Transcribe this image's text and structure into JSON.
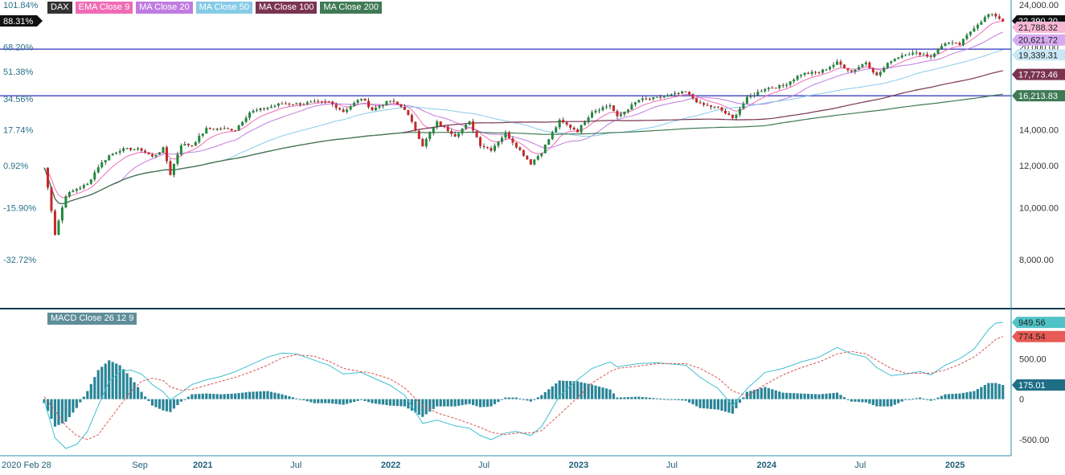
{
  "legend": {
    "symbol": {
      "label": "DAX",
      "color": "#333333"
    },
    "items": [
      {
        "label": "EMA Close 9",
        "color": "#f06bb4"
      },
      {
        "label": "MA Close 20",
        "color": "#c07be0"
      },
      {
        "label": "MA Close 50",
        "color": "#86cbe6"
      },
      {
        "label": "MA Close 100",
        "color": "#7a3450"
      },
      {
        "label": "MA Close 200",
        "color": "#3f7a55"
      }
    ]
  },
  "macd_label": "MACD Close 26 12 9",
  "chart_data": [
    {
      "type": "candlestick",
      "title": "DAX",
      "x_ticks": [
        "2020 Feb 28",
        "Sep",
        "2021",
        "Jul",
        "2022",
        "Jul",
        "2023",
        "Jul",
        "2024",
        "Jul",
        "2025"
      ],
      "x_tick_dates": [
        "2020-02-28",
        "2020-09-01",
        "2021-01-01",
        "2021-07-01",
        "2022-01-01",
        "2022-07-01",
        "2023-01-01",
        "2023-07-01",
        "2024-01-01",
        "2024-07-01",
        "2025-01-01"
      ],
      "x_range": [
        "2020-02-28",
        "2025-04-20"
      ],
      "y_right_ticks": [
        "24,000.00",
        "20,000.00",
        "14,000.00",
        "12,000.00",
        "10,000.00",
        "8,000.00"
      ],
      "y_right_tick_values": [
        24000,
        20000,
        14000,
        12000,
        10000,
        8000
      ],
      "y_left_ticks": [
        "101.84%",
        "68.20%",
        "51.38%",
        "34.56%",
        "17.74%",
        "0.92%",
        "-15.90%",
        "-32.72%"
      ],
      "y_left_tick_values": [
        101.84,
        68.2,
        51.38,
        34.56,
        17.74,
        0.92,
        -15.9,
        -32.72
      ],
      "y_range": [
        6500,
        24500
      ],
      "grid": false,
      "legend_position": "top-left",
      "price_points": [
        [
          "2020-02-28",
          11890
        ],
        [
          "2020-03-20",
          8930
        ],
        [
          "2020-04-10",
          10560
        ],
        [
          "2020-05-01",
          10860
        ],
        [
          "2020-05-22",
          11070
        ],
        [
          "2020-06-12",
          11950
        ],
        [
          "2020-07-03",
          12530
        ],
        [
          "2020-07-24",
          12840
        ],
        [
          "2020-08-14",
          12900
        ],
        [
          "2020-09-04",
          12840
        ],
        [
          "2020-09-25",
          12460
        ],
        [
          "2020-10-16",
          12910
        ],
        [
          "2020-10-30",
          11560
        ],
        [
          "2020-11-20",
          13140
        ],
        [
          "2020-12-11",
          13110
        ],
        [
          "2021-01-08",
          14050
        ],
        [
          "2021-02-05",
          14060
        ],
        [
          "2021-03-05",
          14000
        ],
        [
          "2021-04-02",
          15100
        ],
        [
          "2021-05-07",
          15400
        ],
        [
          "2021-06-04",
          15690
        ],
        [
          "2021-07-02",
          15650
        ],
        [
          "2021-08-06",
          15760
        ],
        [
          "2021-09-03",
          15780
        ],
        [
          "2021-10-01",
          15150
        ],
        [
          "2021-11-05",
          16050
        ],
        [
          "2021-11-26",
          15260
        ],
        [
          "2021-12-31",
          15880
        ],
        [
          "2022-01-28",
          15320
        ],
        [
          "2022-03-04",
          13090
        ],
        [
          "2022-04-01",
          14450
        ],
        [
          "2022-05-06",
          13670
        ],
        [
          "2022-06-03",
          14460
        ],
        [
          "2022-06-24",
          13120
        ],
        [
          "2022-07-15",
          12860
        ],
        [
          "2022-08-12",
          13800
        ],
        [
          "2022-09-02",
          13050
        ],
        [
          "2022-09-30",
          12110
        ],
        [
          "2022-10-21",
          12730
        ],
        [
          "2022-11-25",
          14540
        ],
        [
          "2022-12-30",
          13920
        ],
        [
          "2023-01-27",
          15150
        ],
        [
          "2023-03-03",
          15580
        ],
        [
          "2023-03-17",
          14770
        ],
        [
          "2023-04-28",
          15920
        ],
        [
          "2023-06-02",
          16050
        ],
        [
          "2023-07-28",
          16470
        ],
        [
          "2023-08-25",
          15630
        ],
        [
          "2023-09-29",
          15380
        ],
        [
          "2023-10-27",
          14690
        ],
        [
          "2023-11-24",
          16030
        ],
        [
          "2023-12-29",
          16750
        ],
        [
          "2024-02-02",
          16920
        ],
        [
          "2024-03-08",
          17810
        ],
        [
          "2024-04-12",
          17930
        ],
        [
          "2024-05-17",
          18700
        ],
        [
          "2024-06-14",
          18000
        ],
        [
          "2024-07-12",
          18750
        ],
        [
          "2024-08-02",
          17660
        ],
        [
          "2024-08-30",
          18900
        ],
        [
          "2024-09-27",
          19470
        ],
        [
          "2024-10-25",
          19460
        ],
        [
          "2024-11-15",
          19210
        ],
        [
          "2024-12-13",
          20400
        ],
        [
          "2025-01-10",
          20210
        ],
        [
          "2025-02-07",
          21790
        ],
        [
          "2025-03-07",
          23010
        ],
        [
          "2025-03-21",
          22890
        ],
        [
          "2025-04-04",
          22390
        ]
      ],
      "horizontal_lines": [
        19820,
        16213.83
      ],
      "series": [
        {
          "name": "EMA Close 9",
          "color": "#f06bb4",
          "last_value": 21788.32
        },
        {
          "name": "MA Close 20",
          "color": "#c07be0",
          "last_value": 20621.72
        },
        {
          "name": "MA Close 50",
          "color": "#86cbe6",
          "last_value": 19339.31
        },
        {
          "name": "MA Close 100",
          "color": "#7a3450",
          "last_value": 17773.46
        },
        {
          "name": "MA Close 200",
          "color": "#3f7a55",
          "last_value": 16213.83
        }
      ],
      "last_price": {
        "label": "22,390.20",
        "value": 22390.2
      },
      "percent_marker": {
        "label": "88.31%",
        "value": 88.31
      },
      "value_labels": [
        {
          "label": "22,390.20",
          "value": 22390.2,
          "color": "#111111",
          "text_color": "#ffffff"
        },
        {
          "label": "21,788.32",
          "value": 21788.32,
          "color": "#f7b7d6",
          "text_color": "#222222"
        },
        {
          "label": "20,621.72",
          "value": 20621.72,
          "color": "#d7aaf0",
          "text_color": "#222222"
        },
        {
          "label": "19,339.31",
          "value": 19339.31,
          "color": "#c9e7f5",
          "text_color": "#222222"
        },
        {
          "label": "17,773.46",
          "value": 17773.46,
          "color": "#7a3450",
          "text_color": "#ffffff"
        },
        {
          "label": "16,213.83",
          "value": 16213.83,
          "color": "#3f7a55",
          "text_color": "#ffffff"
        }
      ]
    },
    {
      "type": "macd",
      "title": "MACD Close 26 12 9",
      "y_ticks": [
        "500.00",
        "0",
        "-500.00"
      ],
      "y_tick_values": [
        500,
        0,
        -500
      ],
      "y_range": [
        -700,
        1100
      ],
      "macd_points": [
        [
          "2020-02-28",
          -20
        ],
        [
          "2020-03-20",
          -480
        ],
        [
          "2020-04-10",
          -610
        ],
        [
          "2020-05-01",
          -560
        ],
        [
          "2020-05-22",
          -400
        ],
        [
          "2020-06-12",
          -80
        ],
        [
          "2020-07-03",
          220
        ],
        [
          "2020-07-24",
          340
        ],
        [
          "2020-08-14",
          360
        ],
        [
          "2020-09-04",
          310
        ],
        [
          "2020-09-25",
          180
        ],
        [
          "2020-10-16",
          90
        ],
        [
          "2020-10-30",
          -10
        ],
        [
          "2020-11-20",
          80
        ],
        [
          "2020-12-11",
          180
        ],
        [
          "2021-01-08",
          240
        ],
        [
          "2021-02-05",
          280
        ],
        [
          "2021-03-05",
          340
        ],
        [
          "2021-04-02",
          420
        ],
        [
          "2021-05-07",
          520
        ],
        [
          "2021-06-04",
          570
        ],
        [
          "2021-07-02",
          560
        ],
        [
          "2021-08-06",
          480
        ],
        [
          "2021-09-03",
          420
        ],
        [
          "2021-10-01",
          310
        ],
        [
          "2021-11-05",
          330
        ],
        [
          "2021-11-26",
          270
        ],
        [
          "2021-12-31",
          170
        ],
        [
          "2022-01-28",
          50
        ],
        [
          "2022-03-04",
          -300
        ],
        [
          "2022-04-01",
          -260
        ],
        [
          "2022-05-06",
          -330
        ],
        [
          "2022-06-03",
          -360
        ],
        [
          "2022-06-24",
          -450
        ],
        [
          "2022-07-15",
          -500
        ],
        [
          "2022-08-12",
          -420
        ],
        [
          "2022-09-02",
          -400
        ],
        [
          "2022-09-30",
          -450
        ],
        [
          "2022-10-21",
          -340
        ],
        [
          "2022-11-25",
          40
        ],
        [
          "2022-12-30",
          240
        ],
        [
          "2023-01-27",
          380
        ],
        [
          "2023-03-03",
          460
        ],
        [
          "2023-03-17",
          400
        ],
        [
          "2023-04-28",
          440
        ],
        [
          "2023-06-02",
          450
        ],
        [
          "2023-07-28",
          420
        ],
        [
          "2023-08-25",
          270
        ],
        [
          "2023-09-29",
          130
        ],
        [
          "2023-10-27",
          -80
        ],
        [
          "2023-11-24",
          130
        ],
        [
          "2023-12-29",
          330
        ],
        [
          "2024-02-02",
          380
        ],
        [
          "2024-03-08",
          460
        ],
        [
          "2024-04-12",
          520
        ],
        [
          "2024-05-17",
          640
        ],
        [
          "2024-06-14",
          560
        ],
        [
          "2024-07-12",
          520
        ],
        [
          "2024-08-02",
          390
        ],
        [
          "2024-08-30",
          290
        ],
        [
          "2024-09-27",
          310
        ],
        [
          "2024-10-25",
          340
        ],
        [
          "2024-11-15",
          300
        ],
        [
          "2024-12-13",
          420
        ],
        [
          "2025-01-10",
          500
        ],
        [
          "2025-02-07",
          620
        ],
        [
          "2025-03-07",
          860
        ],
        [
          "2025-03-21",
          940
        ],
        [
          "2025-04-04",
          949.56
        ]
      ],
      "signal_points": [
        [
          "2020-02-28",
          30
        ],
        [
          "2020-03-20",
          -140
        ],
        [
          "2020-04-10",
          -330
        ],
        [
          "2020-05-01",
          -450
        ],
        [
          "2020-05-22",
          -500
        ],
        [
          "2020-06-12",
          -440
        ],
        [
          "2020-07-03",
          -260
        ],
        [
          "2020-07-24",
          -80
        ],
        [
          "2020-08-14",
          90
        ],
        [
          "2020-09-04",
          220
        ],
        [
          "2020-09-25",
          260
        ],
        [
          "2020-10-16",
          230
        ],
        [
          "2020-10-30",
          150
        ],
        [
          "2020-11-20",
          110
        ],
        [
          "2020-12-11",
          120
        ],
        [
          "2021-01-08",
          170
        ],
        [
          "2021-02-05",
          220
        ],
        [
          "2021-03-05",
          270
        ],
        [
          "2021-04-02",
          330
        ],
        [
          "2021-05-07",
          420
        ],
        [
          "2021-06-04",
          510
        ],
        [
          "2021-07-02",
          550
        ],
        [
          "2021-08-06",
          530
        ],
        [
          "2021-09-03",
          470
        ],
        [
          "2021-10-01",
          380
        ],
        [
          "2021-11-05",
          340
        ],
        [
          "2021-11-26",
          320
        ],
        [
          "2021-12-31",
          250
        ],
        [
          "2022-01-28",
          140
        ],
        [
          "2022-03-04",
          -80
        ],
        [
          "2022-04-01",
          -170
        ],
        [
          "2022-05-06",
          -240
        ],
        [
          "2022-06-03",
          -300
        ],
        [
          "2022-06-24",
          -350
        ],
        [
          "2022-07-15",
          -410
        ],
        [
          "2022-08-12",
          -440
        ],
        [
          "2022-09-02",
          -420
        ],
        [
          "2022-09-30",
          -420
        ],
        [
          "2022-10-21",
          -390
        ],
        [
          "2022-11-25",
          -190
        ],
        [
          "2022-12-30",
          20
        ],
        [
          "2023-01-27",
          200
        ],
        [
          "2023-03-03",
          340
        ],
        [
          "2023-03-17",
          380
        ],
        [
          "2023-04-28",
          410
        ],
        [
          "2023-06-02",
          440
        ],
        [
          "2023-07-28",
          440
        ],
        [
          "2023-08-25",
          380
        ],
        [
          "2023-09-29",
          260
        ],
        [
          "2023-10-27",
          100
        ],
        [
          "2023-11-24",
          40
        ],
        [
          "2023-12-29",
          180
        ],
        [
          "2024-02-02",
          300
        ],
        [
          "2024-03-08",
          390
        ],
        [
          "2024-04-12",
          460
        ],
        [
          "2024-05-17",
          560
        ],
        [
          "2024-06-14",
          590
        ],
        [
          "2024-07-12",
          560
        ],
        [
          "2024-08-02",
          480
        ],
        [
          "2024-08-30",
          380
        ],
        [
          "2024-09-27",
          320
        ],
        [
          "2024-10-25",
          320
        ],
        [
          "2024-11-15",
          320
        ],
        [
          "2024-12-13",
          360
        ],
        [
          "2025-01-10",
          430
        ],
        [
          "2025-02-07",
          520
        ],
        [
          "2025-03-07",
          660
        ],
        [
          "2025-03-21",
          740
        ],
        [
          "2025-04-04",
          774.54
        ]
      ],
      "value_labels": [
        {
          "label": "949.56",
          "value": 949.56,
          "color": "#4fc3c7",
          "text_color": "#222222"
        },
        {
          "label": "774.54",
          "value": 774.54,
          "color": "#e85a55",
          "text_color": "#222222"
        },
        {
          "label": "175.01",
          "value": 175.01,
          "color": "#1f6e85",
          "text_color": "#ffffff"
        }
      ]
    }
  ]
}
